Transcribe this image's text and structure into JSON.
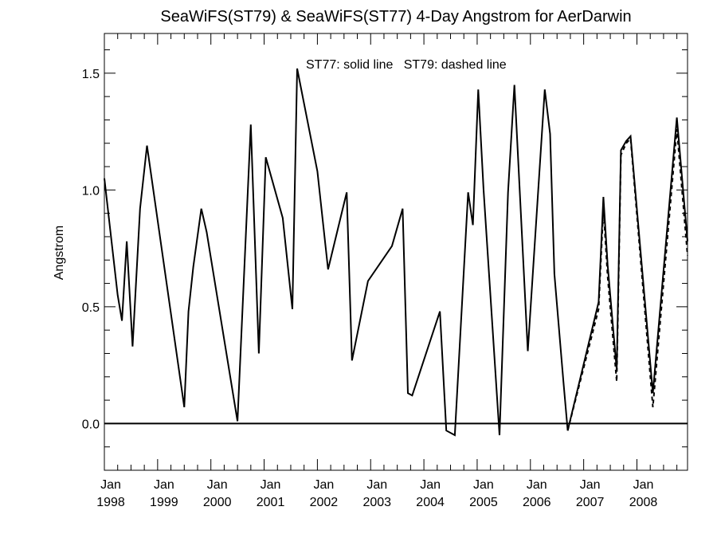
{
  "chart_data": {
    "type": "line",
    "title": "SeaWiFS(ST79) & SeaWiFS(ST77) 4-Day Angstrom for AerDarwin",
    "xlabel": "",
    "ylabel": "Angstrom",
    "annotation": "ST77: solid line   ST79: dashed line",
    "xlim": [
      1998.0,
      2008.95
    ],
    "ylim": [
      -0.2,
      1.67
    ],
    "grid": false,
    "zero_line": 0.0,
    "y_ticks": [
      {
        "value": 0.0,
        "label": "0.0"
      },
      {
        "value": 0.5,
        "label": "0.5"
      },
      {
        "value": 1.0,
        "label": "1.0"
      },
      {
        "value": 1.5,
        "label": "1.5"
      }
    ],
    "y_minor_step": 0.1,
    "x_ticks": [
      {
        "value": 1998,
        "month": "Jan",
        "year": "1998"
      },
      {
        "value": 1999,
        "month": "Jan",
        "year": "1999"
      },
      {
        "value": 2000,
        "month": "Jan",
        "year": "2000"
      },
      {
        "value": 2001,
        "month": "Jan",
        "year": "2001"
      },
      {
        "value": 2002,
        "month": "Jan",
        "year": "2002"
      },
      {
        "value": 2003,
        "month": "Jan",
        "year": "2003"
      },
      {
        "value": 2004,
        "month": "Jan",
        "year": "2004"
      },
      {
        "value": 2005,
        "month": "Jan",
        "year": "2005"
      },
      {
        "value": 2006,
        "month": "Jan",
        "year": "2006"
      },
      {
        "value": 2007,
        "month": "Jan",
        "year": "2007"
      },
      {
        "value": 2008,
        "month": "Jan",
        "year": "2008"
      }
    ],
    "x_minor_months": [
      3,
      6,
      9
    ],
    "series": [
      {
        "name": "ST77",
        "style": "solid",
        "color": "#000000",
        "points": [
          [
            1998.0,
            1.05
          ],
          [
            1998.25,
            0.55
          ],
          [
            1998.33,
            0.44
          ],
          [
            1998.42,
            0.78
          ],
          [
            1998.53,
            0.33
          ],
          [
            1998.67,
            0.92
          ],
          [
            1998.8,
            1.19
          ],
          [
            1999.5,
            0.07
          ],
          [
            1999.58,
            0.48
          ],
          [
            1999.67,
            0.67
          ],
          [
            1999.82,
            0.92
          ],
          [
            1999.92,
            0.82
          ],
          [
            2000.5,
            0.01
          ],
          [
            2000.75,
            1.28
          ],
          [
            2000.9,
            0.3
          ],
          [
            2001.03,
            1.14
          ],
          [
            2001.35,
            0.88
          ],
          [
            2001.53,
            0.49
          ],
          [
            2001.62,
            1.52
          ],
          [
            2002.0,
            1.08
          ],
          [
            2002.2,
            0.66
          ],
          [
            2002.55,
            0.99
          ],
          [
            2002.65,
            0.27
          ],
          [
            2002.95,
            0.61
          ],
          [
            2003.4,
            0.76
          ],
          [
            2003.6,
            0.92
          ],
          [
            2003.7,
            0.13
          ],
          [
            2003.78,
            0.12
          ],
          [
            2004.3,
            0.48
          ],
          [
            2004.42,
            -0.03
          ],
          [
            2004.58,
            -0.05
          ],
          [
            2004.83,
            0.99
          ],
          [
            2004.92,
            0.85
          ],
          [
            2005.02,
            1.43
          ],
          [
            2005.12,
            1.0
          ],
          [
            2005.42,
            -0.05
          ],
          [
            2005.58,
            0.99
          ],
          [
            2005.7,
            1.45
          ],
          [
            2005.95,
            0.31
          ],
          [
            2006.27,
            1.43
          ],
          [
            2006.37,
            1.24
          ],
          [
            2006.45,
            0.64
          ],
          [
            2006.62,
            0.18
          ],
          [
            2006.7,
            -0.03
          ],
          [
            2007.28,
            0.52
          ],
          [
            2007.37,
            0.97
          ],
          [
            2007.45,
            0.68
          ],
          [
            2007.62,
            0.23
          ],
          [
            2007.7,
            1.17
          ],
          [
            2007.8,
            1.21
          ],
          [
            2007.88,
            1.23
          ],
          [
            2008.3,
            0.13
          ],
          [
            2008.75,
            1.31
          ],
          [
            2008.95,
            0.78
          ]
        ]
      },
      {
        "name": "ST79",
        "style": "dashed",
        "color": "#000000",
        "points": [
          [
            2006.7,
            -0.03
          ],
          [
            2007.28,
            0.49
          ],
          [
            2007.37,
            0.92
          ],
          [
            2007.45,
            0.63
          ],
          [
            2007.62,
            0.18
          ],
          [
            2007.7,
            1.15
          ],
          [
            2007.8,
            1.2
          ],
          [
            2007.88,
            1.22
          ],
          [
            2008.3,
            0.07
          ],
          [
            2008.75,
            1.26
          ],
          [
            2008.95,
            0.72
          ]
        ]
      }
    ]
  }
}
